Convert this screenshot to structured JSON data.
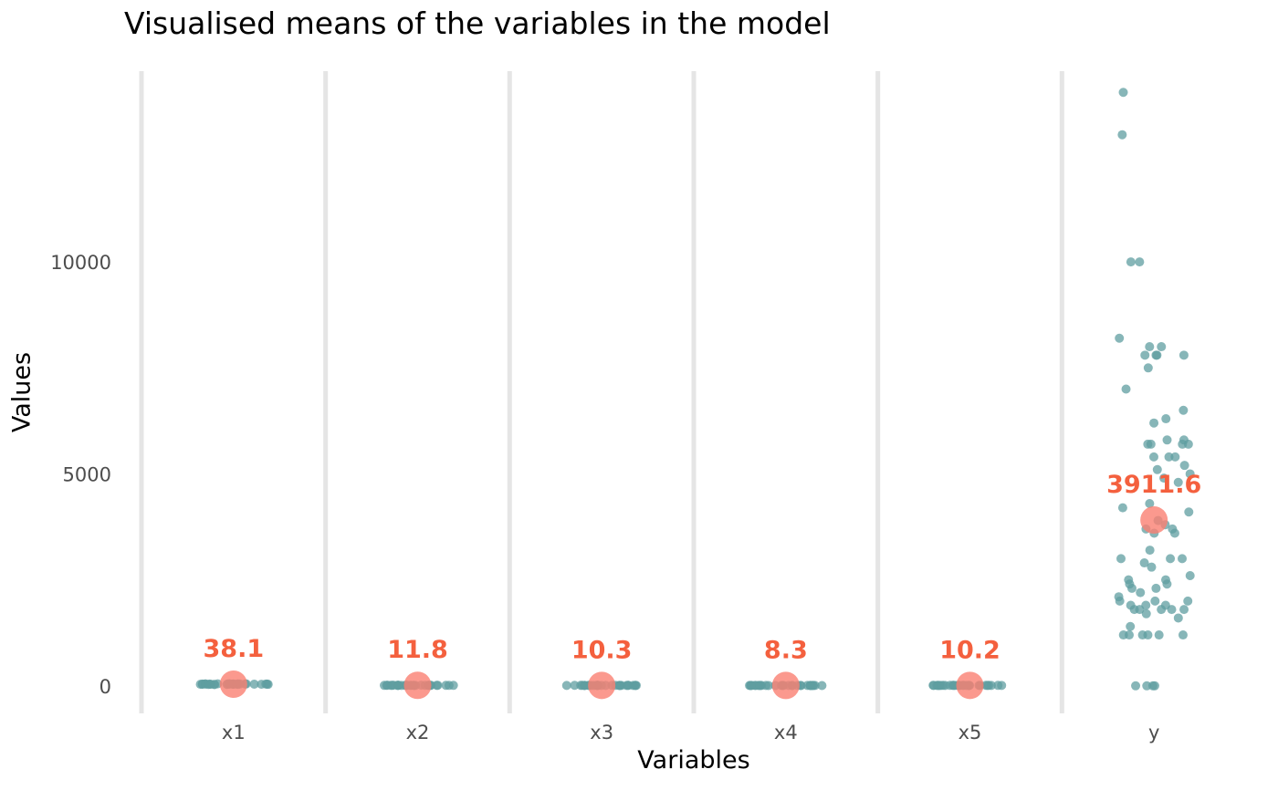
{
  "chart_data": {
    "type": "scatter",
    "title": "Visualised means of the variables in the model",
    "xlabel": "Variables",
    "ylabel": "Values",
    "categories": [
      "x1",
      "x2",
      "x3",
      "x4",
      "x5",
      "y"
    ],
    "ylim": [
      -650,
      14500
    ],
    "yticks": [
      0,
      5000,
      10000
    ],
    "grid": {
      "vertical_at_category_boundaries": true,
      "horizontal": false
    },
    "means": [
      38.1,
      11.8,
      10.3,
      8.3,
      10.2,
      3911.6
    ],
    "mean_labels": [
      "38.1",
      "11.8",
      "10.3",
      "8.3",
      "10.2",
      "3911.6"
    ],
    "point_color": "#5f9ea0",
    "mean_color": "#fa8072",
    "label_color": "#f4603e",
    "grid_color": "#e5e5e5",
    "points": [
      {
        "category": "x1",
        "values": [
          40,
          35,
          45,
          30,
          50,
          38,
          42,
          36,
          44,
          33,
          47,
          39,
          41,
          37,
          43,
          34,
          46,
          32,
          48,
          38,
          40,
          36,
          42,
          35,
          45,
          39,
          41,
          37,
          43,
          38
        ]
      },
      {
        "category": "x2",
        "values": [
          12,
          10,
          14,
          11,
          13,
          9,
          15,
          12,
          11,
          13,
          10,
          14,
          12,
          11,
          13,
          12,
          10,
          14,
          11,
          13,
          12,
          11,
          13,
          12,
          10,
          14,
          11,
          12,
          13,
          12
        ]
      },
      {
        "category": "x3",
        "values": [
          10,
          9,
          11,
          10,
          12,
          8,
          11,
          10,
          9,
          11,
          10,
          12,
          10,
          9,
          11,
          10,
          8,
          12,
          10,
          11,
          10,
          9,
          11,
          10,
          12,
          9,
          11,
          10,
          10,
          11
        ]
      },
      {
        "category": "x4",
        "values": [
          8,
          7,
          9,
          8,
          10,
          6,
          9,
          8,
          7,
          9,
          8,
          10,
          8,
          7,
          9,
          8,
          6,
          10,
          8,
          9,
          8,
          7,
          9,
          8,
          10,
          7,
          9,
          8,
          8,
          9
        ]
      },
      {
        "category": "x5",
        "values": [
          10,
          9,
          11,
          10,
          12,
          8,
          11,
          10,
          9,
          11,
          10,
          12,
          10,
          9,
          11,
          10,
          8,
          12,
          10,
          11,
          10,
          9,
          11,
          10,
          12,
          9,
          11,
          10,
          10,
          11
        ]
      },
      {
        "category": "y",
        "values": [
          14000,
          13000,
          10000,
          10000,
          8200,
          8000,
          8000,
          7800,
          7800,
          7800,
          7800,
          7500,
          7000,
          6500,
          6300,
          6200,
          5800,
          5800,
          5700,
          5700,
          5700,
          5700,
          5400,
          5400,
          5400,
          5200,
          5100,
          5000,
          4900,
          4800,
          4300,
          4200,
          4100,
          3900,
          3800,
          3700,
          3700,
          3600,
          3600,
          3200,
          3000,
          3000,
          3000,
          2900,
          2800,
          2600,
          2500,
          2500,
          2400,
          2400,
          2300,
          2300,
          2200,
          2100,
          2000,
          2000,
          2000,
          1900,
          1900,
          1900,
          1800,
          1800,
          1800,
          1800,
          1800,
          1700,
          1600,
          1400,
          1200,
          1200,
          1200,
          1200,
          1200,
          1200,
          0,
          0,
          0,
          0
        ]
      }
    ]
  }
}
